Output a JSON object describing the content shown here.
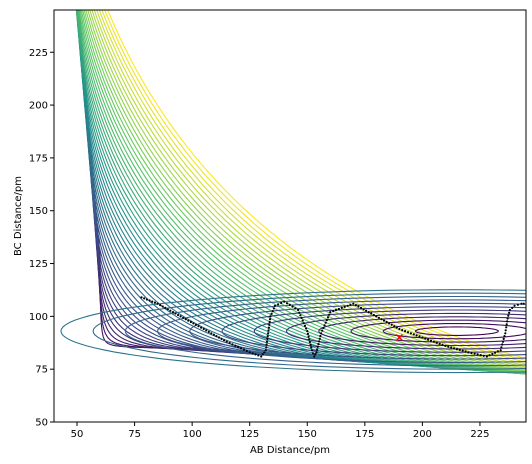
{
  "chart_data": {
    "type": "contour",
    "title": "",
    "xlabel": "AB Distance/pm",
    "ylabel": "BC Distance/pm",
    "xlim": [
      40,
      245
    ],
    "ylim": [
      50,
      245
    ],
    "xticks": [
      50,
      75,
      100,
      125,
      150,
      175,
      200,
      225
    ],
    "yticks": [
      50,
      75,
      100,
      125,
      150,
      175,
      200,
      225
    ],
    "colormap": [
      "#440154",
      "#3b528b",
      "#21918c",
      "#5ec962",
      "#fde725"
    ],
    "trajectory_color": "#000000",
    "trajectory": {
      "x": [
        78,
        85,
        95,
        105,
        115,
        125,
        130,
        132,
        133,
        134,
        136,
        140,
        146,
        150,
        152,
        153,
        154,
        156,
        160,
        170,
        180,
        190,
        200,
        210,
        220,
        228,
        234,
        236,
        237,
        238,
        240,
        243,
        245
      ],
      "y": [
        109,
        106,
        100,
        94,
        88,
        83,
        81,
        84,
        92,
        100,
        105,
        107,
        103,
        93,
        84,
        81,
        83,
        92,
        102,
        106,
        100,
        94,
        90,
        86,
        83,
        81,
        84,
        92,
        99,
        103,
        105,
        106,
        106
      ]
    },
    "marker": {
      "x": 190,
      "y": 90,
      "symbol": "x",
      "color": "#ff0000"
    }
  }
}
